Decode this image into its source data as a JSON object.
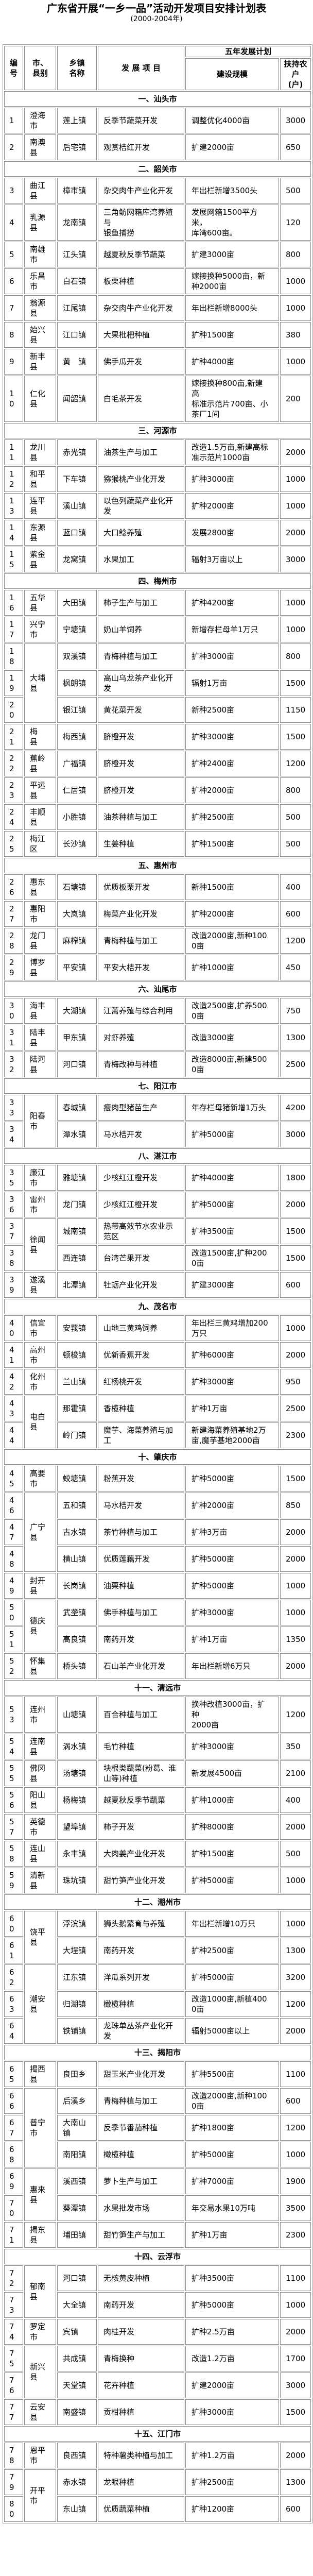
{
  "title": "广东省开展“一乡一品”活动开发项目安排计划表",
  "subtitle": "(2000-2004年)",
  "header": {
    "no": "编号",
    "county": "市、县别",
    "town": "乡镇名称",
    "project": "发 展 项 目",
    "plan": "五年发展计划",
    "scale": "建设规模",
    "households": "扶持农户\n(户)"
  },
  "sections": [
    {
      "title": "一、汕头市",
      "rows": [
        {
          "no": "1",
          "county": "澄海市",
          "span": 1,
          "town": "莲上镇",
          "project": "反季节蔬菜开发",
          "scale": "调整优化4000亩",
          "households": "3000"
        },
        {
          "no": "2",
          "county": "南澳县",
          "span": 1,
          "town": "后宅镇",
          "project": "观赏桔红开发",
          "scale": "扩建2000亩",
          "households": "650"
        }
      ]
    },
    {
      "title": "二、韶关市",
      "rows": [
        {
          "no": "3",
          "county": "曲江县",
          "span": 1,
          "town": "樟市镇",
          "project": "杂交肉牛产业化开发",
          "scale": "年出栏新增3500头",
          "households": "500"
        },
        {
          "no": "4",
          "county": "乳源县",
          "span": 1,
          "town": "龙南镇",
          "project": "三角鲂网箱库湾养殖与\n银鱼捕捞",
          "scale": "发展网箱1500平方米，\n库湾600亩。",
          "households": "120"
        },
        {
          "no": "5",
          "county": "南雄市",
          "span": 1,
          "town": "江头镇",
          "project": "越夏秋反季节蔬菜",
          "scale": "扩建3000亩",
          "households": "800"
        },
        {
          "no": "6",
          "county": "乐昌市",
          "span": 1,
          "town": "白石镇",
          "project": "板栗种植",
          "scale": "嫁接换种5000亩，新种2000亩",
          "households": "1000"
        },
        {
          "no": "7",
          "county": "翁源县",
          "span": 1,
          "town": "江尾镇",
          "project": "杂交肉牛产业化开发",
          "scale": "年出栏新增8000头",
          "households": "1000"
        },
        {
          "no": "8",
          "county": "始兴县",
          "span": 1,
          "town": "江口镇",
          "project": "大果枇杷种植",
          "scale": "扩种1500亩",
          "households": "380"
        },
        {
          "no": "9",
          "county": "新丰县",
          "span": 1,
          "town": "黄　镇",
          "project": "佛手瓜开发",
          "scale": "扩种4000亩",
          "households": "1000"
        },
        {
          "no": "10",
          "county": "仁化县",
          "span": 1,
          "town": "闻韶镇",
          "project": "白毛茶开发",
          "scale": "嫁接换种800亩,新建高\n标准示范片700亩、小茶厂1间",
          "households": "200"
        }
      ]
    },
    {
      "title": "三、河源市",
      "rows": [
        {
          "no": "11",
          "county": "龙川县",
          "span": 1,
          "town": "赤光镇",
          "project": "油茶生产与加工",
          "scale": "改造1.5万亩,新建高标准示范片1000亩",
          "households": "2000"
        },
        {
          "no": "12",
          "county": "和平县",
          "span": 1,
          "town": "下车镇",
          "project": "猕猴桃产业化开发",
          "scale": "扩种3000亩",
          "households": "1000"
        },
        {
          "no": "13",
          "county": "连平县",
          "span": 1,
          "town": "溪山镇",
          "project": "以色列蔬菜产业化开发",
          "scale": "扩种2000亩",
          "households": "1000"
        },
        {
          "no": "14",
          "county": "东源县",
          "span": 1,
          "town": "蓝口镇",
          "project": "大口鲶养殖",
          "scale": "发展2800亩",
          "households": "2000"
        },
        {
          "no": "15",
          "county": "紫金县",
          "span": 1,
          "town": "龙窝镇",
          "project": "水果加工",
          "scale": "辐射3万亩以上",
          "households": "3000"
        }
      ]
    },
    {
      "title": "四、梅州市",
      "rows": [
        {
          "no": "16",
          "county": "五华县",
          "span": 1,
          "town": "大田镇",
          "project": "柿子生产与加工",
          "scale": "扩种4200亩",
          "households": "1000"
        },
        {
          "no": "17",
          "county": "兴宁市",
          "span": 1,
          "town": "宁塘镇",
          "project": "奶山羊饲养",
          "scale": "新增存栏母羊1万只",
          "households": "1000"
        },
        {
          "no": "18",
          "county": "大埔县",
          "span": 3,
          "town": "双溪镇",
          "project": "青梅种植与加工",
          "scale": "扩种3000亩",
          "households": "800"
        },
        {
          "no": "19",
          "town": "枫朗镇",
          "project": "高山乌龙茶产业化开发",
          "scale": "辐射1万亩",
          "households": "1500"
        },
        {
          "no": "20",
          "town": "银江镇",
          "project": "黄花菜开发",
          "scale": "新种2500亩",
          "households": "1150"
        },
        {
          "no": "21",
          "county": "梅\n县",
          "span": 1,
          "town": "梅西镇",
          "project": "脐橙开发",
          "scale": "扩种3000亩",
          "households": "1500"
        },
        {
          "no": "22",
          "county": "蕉岭县",
          "span": 1,
          "town": "广福镇",
          "project": "脐橙开发",
          "scale": "扩种2400亩",
          "households": "1200"
        },
        {
          "no": "23",
          "county": "平远县",
          "span": 1,
          "town": "仁居镇",
          "project": "脐橙开发",
          "scale": "扩种2000亩",
          "households": "800"
        },
        {
          "no": "24",
          "county": "丰顺县",
          "span": 1,
          "town": "小胜镇",
          "project": "油茶种植与加工",
          "scale": "扩种2500亩",
          "households": "500"
        },
        {
          "no": "25",
          "county": "梅江区",
          "span": 1,
          "town": "长沙镇",
          "project": "生姜种植",
          "scale": "扩种1500亩",
          "households": "500"
        }
      ]
    },
    {
      "title": "五、惠州市",
      "rows": [
        {
          "no": "26",
          "county": "惠东县",
          "span": 1,
          "town": "石塘镇",
          "project": "优质板栗开发",
          "scale": "新种1500亩",
          "households": "400"
        },
        {
          "no": "27",
          "county": "惠阳市",
          "span": 1,
          "town": "大岚镇",
          "project": "梅菜产业化开发",
          "scale": "扩种2000亩",
          "households": "600"
        },
        {
          "no": "28",
          "county": "龙门县",
          "span": 1,
          "town": "麻榨镇",
          "project": "青梅种植与加工",
          "scale": "改造2000亩,新种1000亩",
          "households": "1200"
        },
        {
          "no": "29",
          "county": "博罗县",
          "span": 1,
          "town": "平安镇",
          "project": "平安大桔开发",
          "scale": "扩种1000亩",
          "households": "450"
        }
      ]
    },
    {
      "title": "六、汕尾市",
      "rows": [
        {
          "no": "30",
          "county": "海丰县",
          "span": 1,
          "town": "大湖镇",
          "project": "江蓠养殖与综合利用",
          "scale": "改造2500亩,扩养5000亩",
          "households": "750"
        },
        {
          "no": "31",
          "county": "陆丰县",
          "span": 1,
          "town": "甲东镇",
          "project": "对虾养殖",
          "scale": "改造3000亩",
          "households": "1300"
        },
        {
          "no": "32",
          "county": "陆河县",
          "span": 1,
          "town": "河口镇",
          "project": "青梅改种与种植",
          "scale": "改造8000亩,新建5000亩",
          "households": "2500"
        }
      ]
    },
    {
      "title": "七、阳江市",
      "rows": [
        {
          "no": "33",
          "county": "阳春市",
          "span": 2,
          "town": "春城镇",
          "project": "瘦肉型猪苗生产",
          "scale": "年存栏母猪新增1万头",
          "households": "4200"
        },
        {
          "no": "34",
          "town": "潭水镇",
          "project": "马水桔开发",
          "scale": "扩种5000亩",
          "households": "3000"
        }
      ]
    },
    {
      "title": "八、湛江市",
      "rows": [
        {
          "no": "35",
          "county": "廉江市",
          "span": 1,
          "town": "雅塘镇",
          "project": "少核红江橙开发",
          "scale": "扩种4000亩",
          "households": "1800"
        },
        {
          "no": "36",
          "county": "雷州市",
          "span": 1,
          "town": "龙门镇",
          "project": "少核红江橙开发",
          "scale": "扩种5000亩",
          "households": "2000"
        },
        {
          "no": "37",
          "county": "徐闻县",
          "span": 2,
          "town": "城南镇",
          "project": "热带高效节水农业示范区",
          "scale": "扩种3500亩",
          "households": "1500"
        },
        {
          "no": "38",
          "town": "西连镇",
          "project": "台湾芒果开发",
          "scale": "改造1500亩,扩种2000亩",
          "households": "1500"
        },
        {
          "no": "39",
          "county": "遂溪县",
          "span": 1,
          "town": "北潭镇",
          "project": "牡蛎产业化开发",
          "scale": "扩建3000亩",
          "households": "600"
        }
      ]
    },
    {
      "title": "九、茂名市",
      "rows": [
        {
          "no": "40",
          "county": "信宜市",
          "span": 1,
          "town": "安莪镇",
          "project": "山地三黄鸡饲养",
          "scale": "年出栏三黄鸡增加200万只",
          "households": "1000"
        },
        {
          "no": "41",
          "county": "高州市",
          "span": 1,
          "town": "顿梭镇",
          "project": "优新香蕉开发",
          "scale": "扩种6000亩",
          "households": "2000"
        },
        {
          "no": "42",
          "county": "化州市",
          "span": 1,
          "town": "兰山镇",
          "project": "红杨桃开发",
          "scale": "扩种3000亩",
          "households": "950"
        },
        {
          "no": "43",
          "county": "电白县",
          "span": 2,
          "town": "那霍镇",
          "project": "香榄种植",
          "scale": "扩种1万亩",
          "households": "2500"
        },
        {
          "no": "44",
          "town": "岭门镇",
          "project": "魔芋、海菜养殖与加工",
          "scale": "新建海菜养殖基地2万亩,魔芋基地2000亩",
          "households": "2300"
        }
      ]
    },
    {
      "title": "十、肇庆市",
      "rows": [
        {
          "no": "45",
          "county": "高要市",
          "span": 1,
          "town": "蛟塘镇",
          "project": "粉蕉开发",
          "scale": "扩种5000亩",
          "households": "1500"
        },
        {
          "no": "46",
          "county": "广宁县",
          "span": 3,
          "town": "五和镇",
          "project": "马水桔开发",
          "scale": "扩种2000亩",
          "households": "850"
        },
        {
          "no": "47",
          "town": "古水镇",
          "project": "茶竹种植与加工",
          "scale": "扩种3万亩",
          "households": "2000"
        },
        {
          "no": "48",
          "town": "横山镇",
          "project": "优质莲藕开发",
          "scale": "扩种5000亩",
          "households": "2000"
        },
        {
          "no": "49",
          "county": "封开县",
          "span": 1,
          "town": "长岗镇",
          "project": "油栗种植",
          "scale": "扩种5000亩",
          "households": "1000"
        },
        {
          "no": "50",
          "county": "德庆县",
          "span": 2,
          "town": "武垄镇",
          "project": "佛手种植与加工",
          "scale": "扩种3000亩",
          "households": "1000"
        },
        {
          "no": "51",
          "town": "高良镇",
          "project": "南药开发",
          "scale": "扩种1万亩",
          "households": "1350"
        },
        {
          "no": "52",
          "county": "怀集县",
          "span": 1,
          "town": "桥头镇",
          "project": "石山羊产业化开发",
          "scale": "年出栏新增6万只",
          "households": "2000"
        }
      ]
    },
    {
      "title": "十一、清远市",
      "rows": [
        {
          "no": "53",
          "county": "连州市",
          "span": 1,
          "town": "山塘镇",
          "project": "百合种植与加工",
          "scale": "换种改植3000亩，扩种\n2000亩",
          "households": "1200"
        },
        {
          "no": "54",
          "county": "连南县",
          "span": 1,
          "town": "涡水镇",
          "project": "毛竹种植",
          "scale": "扩种3000亩",
          "households": "350"
        },
        {
          "no": "55",
          "county": "佛冈县",
          "span": 1,
          "town": "汤塘镇",
          "project": "块根类蔬菜(粉葛、淮\n山等)种植",
          "scale": "新发展4500亩",
          "households": "2100"
        },
        {
          "no": "56",
          "county": "阳山县",
          "span": 1,
          "town": "杨梅镇",
          "project": "越夏秋反季节蔬菜",
          "scale": "扩种1000亩",
          "households": "400"
        },
        {
          "no": "57",
          "county": "英德市",
          "span": 1,
          "town": "望埠镇",
          "project": "柿子开发",
          "scale": "扩种8000亩",
          "households": "2000"
        },
        {
          "no": "58",
          "county": "连山县",
          "span": 1,
          "town": "永丰镇",
          "project": "大肉姜产业化开发",
          "scale": "扩种1500亩",
          "households": "500"
        },
        {
          "no": "59",
          "county": "清新县",
          "span": 1,
          "town": "珠坑镇",
          "project": "甜竹笋产业化开发",
          "scale": "扩种5000亩",
          "households": "1000"
        }
      ]
    },
    {
      "title": "十二、潮州市",
      "rows": [
        {
          "no": "60",
          "county": "饶平县",
          "span": 2,
          "town": "浮滨镇",
          "project": "狮头鹅繁育与养殖",
          "scale": "年出栏新增10万只",
          "households": "1000"
        },
        {
          "no": "61",
          "town": "大埕镇",
          "project": "南药开发",
          "scale": "扩种2500亩",
          "households": "1300"
        },
        {
          "no": "62",
          "county": "潮安县",
          "span": 3,
          "town": "江东镇",
          "project": "洋瓜系列开发",
          "scale": "扩种5000亩",
          "households": "3200"
        },
        {
          "no": "63",
          "town": "归湖镇",
          "project": "橄榄种植",
          "scale": "改造1000亩,新植4000亩",
          "households": "1200"
        },
        {
          "no": "64",
          "town": "铁铺镇",
          "project": "龙珠单丛茶产业化开发",
          "scale": "辐射5000亩以上",
          "households": "2000"
        }
      ]
    },
    {
      "title": "十三、揭阳市",
      "rows": [
        {
          "no": "65",
          "county": "揭西县",
          "span": 1,
          "town": "良田乡",
          "project": "甜玉米产业化开发",
          "scale": "扩种5500亩",
          "households": "1100"
        },
        {
          "no": "66",
          "county": "普宁市",
          "span": 3,
          "town": "后溪乡",
          "project": "青梅种植与加工",
          "scale": "改造2000亩,新种1000亩",
          "households": "600"
        },
        {
          "no": "67",
          "town": "大南山镇",
          "project": "反季节番茄种植",
          "scale": "扩种1800亩",
          "households": "1200"
        },
        {
          "no": "68",
          "town": "南阳镇",
          "project": "橄榄种植",
          "scale": "扩种5000亩",
          "households": "1000"
        },
        {
          "no": "69",
          "county": "惠来县",
          "span": 2,
          "town": "溪西镇",
          "project": "萝卜生产与加工",
          "scale": "扩种7000亩",
          "households": "1900"
        },
        {
          "no": "70",
          "town": "葵潭镇",
          "project": "水果批发市场",
          "scale": "年交易水果10万吨",
          "households": "3500"
        },
        {
          "no": "71",
          "county": "揭东县",
          "span": 1,
          "town": "埔田镇",
          "project": "甜竹笋生产与加工",
          "scale": "扩种1万亩",
          "households": "2300"
        }
      ]
    },
    {
      "title": "十四、云浮市",
      "rows": [
        {
          "no": "72",
          "county": "郁南县",
          "span": 2,
          "town": "河口镇",
          "project": "无核黄皮种植",
          "scale": "扩种3500亩",
          "households": "1100"
        },
        {
          "no": "73",
          "town": "大全镇",
          "project": "南药开发",
          "scale": "扩种5000亩",
          "households": "1000"
        },
        {
          "no": "74",
          "county": "罗定市",
          "span": 1,
          "town": "宾镇",
          "project": "肉桂开发",
          "scale": "扩种2.5万亩",
          "households": "2000"
        },
        {
          "no": "75",
          "county": "新兴县",
          "span": 2,
          "town": "共成镇",
          "project": "青梅换种",
          "scale": "改造1.2万亩",
          "households": "1700"
        },
        {
          "no": "76",
          "town": "天堂镇",
          "project": "花卉种植",
          "scale": "扩建2000亩",
          "households": "3000"
        },
        {
          "no": "77",
          "county": "云安县",
          "span": 1,
          "town": "南盛镇",
          "project": "贡柑种植",
          "scale": "扩种3000亩",
          "households": "1500"
        }
      ]
    },
    {
      "title": "十五、江门市",
      "rows": [
        {
          "no": "78",
          "county": "恩平市",
          "span": 1,
          "town": "良西镇",
          "project": "特种薯类种植与加工",
          "scale": "扩种1.2万亩",
          "households": "2000"
        },
        {
          "no": "79",
          "county": "开平市",
          "span": 2,
          "town": "赤水镇",
          "project": "龙眼种植",
          "scale": "扩种2500亩",
          "households": "1300"
        },
        {
          "no": "80",
          "town": "东山镇",
          "project": "优质蔬菜种植",
          "scale": "扩种1200亩",
          "households": "600"
        }
      ]
    }
  ]
}
